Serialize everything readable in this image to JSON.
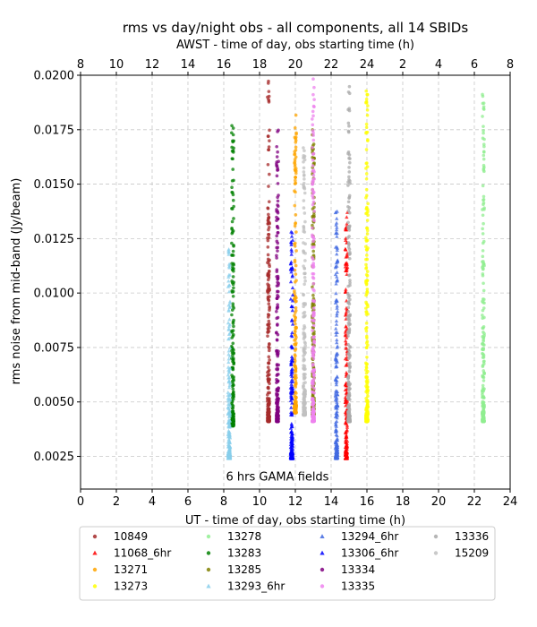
{
  "chart_data": {
    "type": "scatter",
    "title": "rms vs day/night obs - all components, all 14 SBIDs",
    "xlabel": "UT - time of day, obs starting time (h)",
    "x2label": "AWST - time of day, obs starting time (h)",
    "ylabel": "rms noise from mid-band (Jy/beam)",
    "xlim": [
      0,
      24
    ],
    "ylim": [
      0.001,
      0.02
    ],
    "xticks": [
      "0",
      "2",
      "4",
      "6",
      "8",
      "10",
      "12",
      "14",
      "16",
      "18",
      "20",
      "22",
      "24"
    ],
    "x2ticks": [
      "8",
      "10",
      "12",
      "14",
      "16",
      "18",
      "20",
      "22",
      "24",
      "2",
      "4",
      "6",
      "8"
    ],
    "yticks": [
      "0.0025",
      "0.0050",
      "0.0075",
      "0.0100",
      "0.0125",
      "0.0150",
      "0.0175",
      "0.0200"
    ],
    "grid": true,
    "legend_position": "bottom",
    "annotation": {
      "text": "6 hrs GAMA fields",
      "x": 11,
      "y": 0.0016
    },
    "series": [
      {
        "name": "10849",
        "marker": "circle",
        "color": "#a52a2a",
        "x": 10.5,
        "ymin": 0.0041,
        "ymax": 0.0199
      },
      {
        "name": "11068_6hr",
        "marker": "triangle",
        "color": "#ff0000",
        "x": 14.85,
        "ymin": 0.0024,
        "ymax": 0.014
      },
      {
        "name": "13271",
        "marker": "circle",
        "color": "#ffa500",
        "x": 12.0,
        "ymin": 0.0045,
        "ymax": 0.0183
      },
      {
        "name": "13273",
        "marker": "circle",
        "color": "#ffff00",
        "x": 16.0,
        "ymin": 0.0041,
        "ymax": 0.0193
      },
      {
        "name": "13278",
        "marker": "circle",
        "color": "#90ee90",
        "x": 22.5,
        "ymin": 0.0041,
        "ymax": 0.0195
      },
      {
        "name": "13283",
        "marker": "circle",
        "color": "#008000",
        "x": 8.5,
        "ymin": 0.0039,
        "ymax": 0.0181
      },
      {
        "name": "13285",
        "marker": "circle",
        "color": "#808000",
        "x": 13.0,
        "ymin": 0.0044,
        "ymax": 0.0175
      },
      {
        "name": "13293_6hr",
        "marker": "triangle",
        "color": "#87ceeb",
        "x": 8.3,
        "ymin": 0.0024,
        "ymax": 0.0125
      },
      {
        "name": "13294_6hr",
        "marker": "triangle",
        "color": "#4169e1",
        "x": 14.3,
        "ymin": 0.0024,
        "ymax": 0.0138
      },
      {
        "name": "13306_6hr",
        "marker": "triangle",
        "color": "#0000ff",
        "x": 11.8,
        "ymin": 0.0024,
        "ymax": 0.013
      },
      {
        "name": "13334",
        "marker": "circle",
        "color": "#800080",
        "x": 11.0,
        "ymin": 0.0041,
        "ymax": 0.0175
      },
      {
        "name": "13335",
        "marker": "circle",
        "color": "#ee82ee",
        "x": 13.0,
        "ymin": 0.0041,
        "ymax": 0.0199
      },
      {
        "name": "13336",
        "marker": "circle",
        "color": "#a9a9a9",
        "x": 15.0,
        "ymin": 0.0041,
        "ymax": 0.0199
      },
      {
        "name": "15209",
        "marker": "circle",
        "color": "#c0c0c0",
        "x": 12.5,
        "ymin": 0.0044,
        "ymax": 0.0168
      }
    ]
  }
}
